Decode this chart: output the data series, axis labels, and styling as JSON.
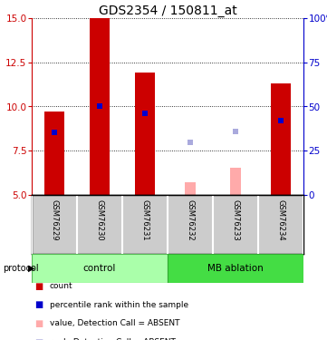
{
  "title": "GDS2354 / 150811_at",
  "samples": [
    "GSM76229",
    "GSM76230",
    "GSM76231",
    "GSM76232",
    "GSM76233",
    "GSM76234"
  ],
  "bar_bottom": 5.0,
  "red_bars": [
    9.7,
    15.0,
    11.9,
    null,
    null,
    11.3
  ],
  "blue_markers": [
    8.55,
    10.0,
    9.6,
    null,
    null,
    9.2
  ],
  "pink_bars": [
    null,
    null,
    null,
    5.7,
    6.55,
    null
  ],
  "lavender_markers": [
    null,
    null,
    null,
    7.95,
    8.6,
    null
  ],
  "ylim": [
    5.0,
    15.0
  ],
  "yticks_left": [
    5,
    7.5,
    10,
    12.5,
    15
  ],
  "yticks_right_vals": [
    5,
    7.5,
    10,
    12.5,
    15
  ],
  "yticks_right_labels": [
    "0",
    "25",
    "50",
    "75",
    "100%"
  ],
  "red_color": "#cc0000",
  "blue_color": "#0000cc",
  "pink_color": "#ffaaaa",
  "lavender_color": "#aaaadd",
  "control_color_light": "#aaffaa",
  "control_color_dark": "#66ee66",
  "mb_color": "#44dd44",
  "bg_color": "#ffffff",
  "label_bg": "#cccccc",
  "title_fontsize": 10,
  "tick_fontsize": 7.5,
  "legend_items": [
    {
      "label": "count",
      "color": "#cc0000"
    },
    {
      "label": "percentile rank within the sample",
      "color": "#0000cc"
    },
    {
      "label": "value, Detection Call = ABSENT",
      "color": "#ffaaaa"
    },
    {
      "label": "rank, Detection Call = ABSENT",
      "color": "#aaaadd"
    }
  ]
}
